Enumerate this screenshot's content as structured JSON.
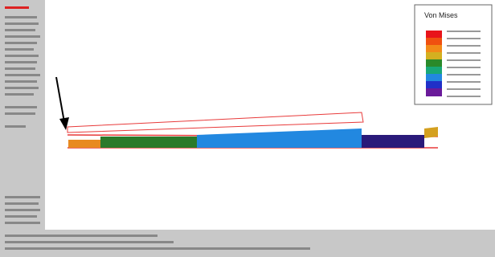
{
  "legend": {
    "title": "Von Mises"
  }
}
